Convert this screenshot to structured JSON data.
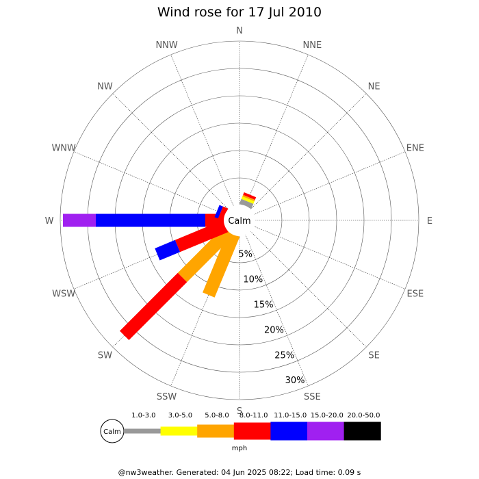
{
  "title": "Wind rose for 17 Jul 2010",
  "calm_label": "Calm",
  "directions": [
    "N",
    "NNE",
    "NE",
    "ENE",
    "E",
    "ESE",
    "SE",
    "SSE",
    "S",
    "SSW",
    "SW",
    "WSW",
    "W",
    "WNW",
    "NW",
    "NNW"
  ],
  "percent_labels": [
    "5%",
    "10%",
    "15%",
    "20%",
    "25%",
    "30%"
  ],
  "legend": {
    "calm_label": "Calm",
    "unit": "mph",
    "bins": [
      {
        "label": "1.0-3.0",
        "color": "#999999"
      },
      {
        "label": "3.0-5.0",
        "color": "#ffff00"
      },
      {
        "label": "5.0-8.0",
        "color": "#ffa500"
      },
      {
        "label": "8.0-11.0",
        "color": "#ff0000"
      },
      {
        "label": "11.0-15.0",
        "color": "#0000ff"
      },
      {
        "label": "15.0-20.0",
        "color": "#a020f0"
      },
      {
        "label": "20.0-50.0",
        "color": "#000000"
      }
    ]
  },
  "footer": "@nw3weather. Generated: 04 Jun 2025 08:22; Load time: 0.09 s",
  "chart_data": {
    "type": "wind-rose",
    "title": "Wind rose for 17 Jul 2010",
    "unit": "mph",
    "rlim": [
      0,
      30
    ],
    "rticks": [
      5,
      10,
      15,
      20,
      25,
      30
    ],
    "speed_bins": [
      "1.0-3.0",
      "3.0-5.0",
      "5.0-8.0",
      "8.0-11.0",
      "11.0-15.0",
      "15.0-20.0",
      "20.0-50.0"
    ],
    "bin_colors": [
      "#999999",
      "#ffff00",
      "#ffa500",
      "#ff0000",
      "#0000ff",
      "#a020f0",
      "#000000"
    ],
    "directions": [
      "N",
      "NNE",
      "NE",
      "ENE",
      "E",
      "ESE",
      "SE",
      "SSE",
      "S",
      "SSW",
      "SW",
      "WSW",
      "W",
      "WNW",
      "NW",
      "NNW"
    ],
    "series": [
      {
        "direction": "NNE",
        "values": [
          1.0,
          0.5,
          0.3,
          0.5,
          0,
          0,
          0
        ]
      },
      {
        "direction": "SSW",
        "values": [
          0,
          0,
          12.0,
          0,
          0,
          0,
          0
        ]
      },
      {
        "direction": "SW",
        "values": [
          0,
          0,
          12.0,
          15.0,
          0,
          0,
          0
        ]
      },
      {
        "direction": "WSW",
        "values": [
          0,
          0,
          0,
          9.5,
          4.0,
          0,
          0
        ]
      },
      {
        "direction": "W",
        "values": [
          0,
          0,
          0,
          3.5,
          20.0,
          6.0,
          0
        ]
      },
      {
        "direction": "WNW",
        "values": [
          0,
          0,
          0,
          1.0,
          0.7,
          0,
          0
        ]
      }
    ]
  }
}
